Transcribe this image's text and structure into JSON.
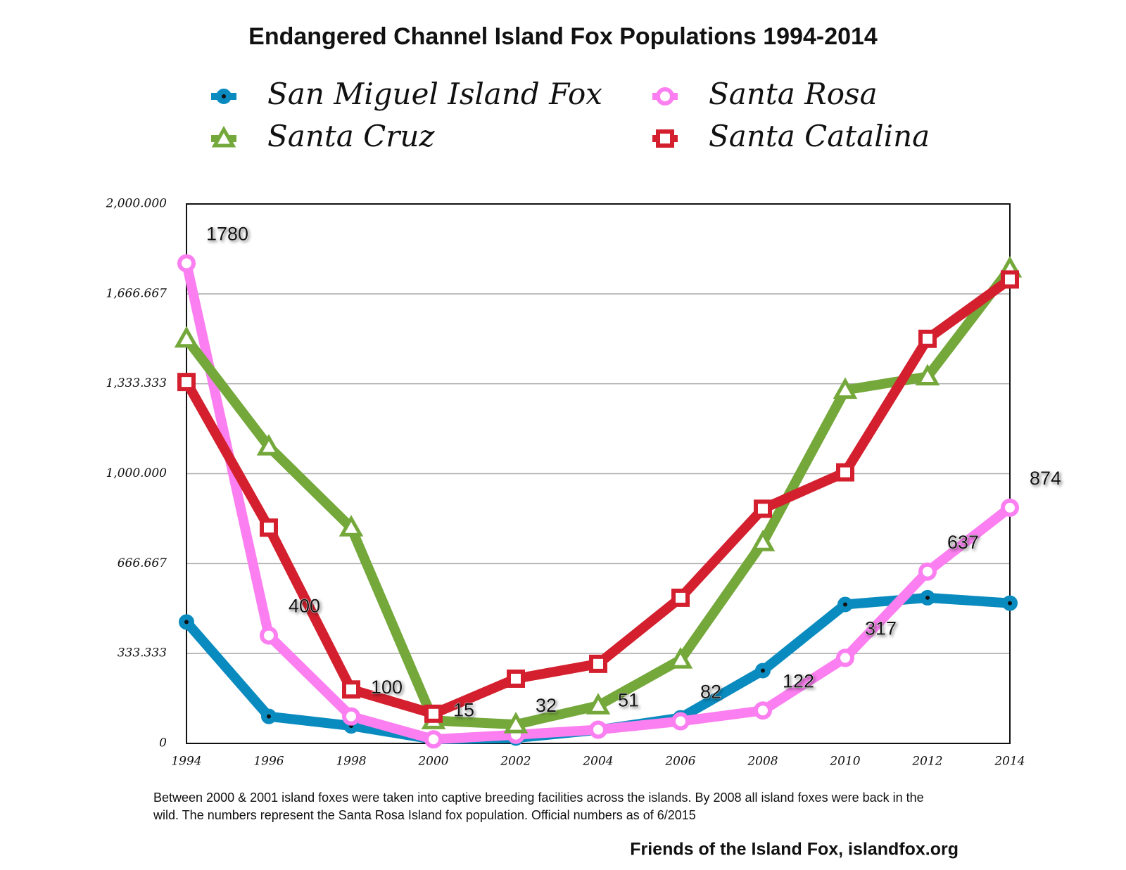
{
  "chart_data": {
    "type": "line",
    "title": "Endangered Channel Island Fox Populations 1994-2014",
    "notes": [
      "Between 2000 & 2001 island foxes were taken into captive breeding facilities across the islands. By 2008 all island foxes were back in the",
      "wild. The numbers represent the Santa Rosa Island fox population. Official numbers as of 6/2015"
    ],
    "source": "Friends of the Island Fox, islandfox.org",
    "categories": [
      "1994",
      "1996",
      "1998",
      "2000",
      "2002",
      "2004",
      "2006",
      "2008",
      "2010",
      "2012",
      "2014"
    ],
    "ylim": [
      0,
      2000
    ],
    "yticks": [
      0,
      333.333,
      666.667,
      {
        "value": 1000,
        "label": "1,000.000"
      },
      {
        "value": 1333.333,
        "label": "1,333.333"
      },
      {
        "value": 1666.667,
        "label": "1,666.667"
      },
      {
        "value": 2000,
        "label": "2,000.000"
      }
    ],
    "grid": true,
    "series": [
      {
        "name": "San Miguel Island Fox",
        "color": "#0a8bbf",
        "marker": "circle-dot",
        "values": [
          450,
          100,
          65,
          15,
          20,
          50,
          95,
          270,
          515,
          540,
          520
        ]
      },
      {
        "name": "Santa Rosa",
        "color": "#fb7ff0",
        "marker": "circle",
        "show_values": true,
        "values": [
          1780,
          400,
          100,
          15,
          32,
          51,
          82,
          122,
          317,
          637,
          874
        ]
      },
      {
        "name": "Santa Cruz",
        "color": "#74a83a",
        "marker": "triangle",
        "values": [
          1500,
          1100,
          800,
          85,
          70,
          140,
          310,
          745,
          1310,
          1360,
          1760
        ]
      },
      {
        "name": "Santa Catalina",
        "color": "#d4202e",
        "marker": "square",
        "values": [
          1340,
          800,
          200,
          110,
          240,
          295,
          540,
          870,
          1005,
          1500,
          1720
        ]
      }
    ]
  }
}
